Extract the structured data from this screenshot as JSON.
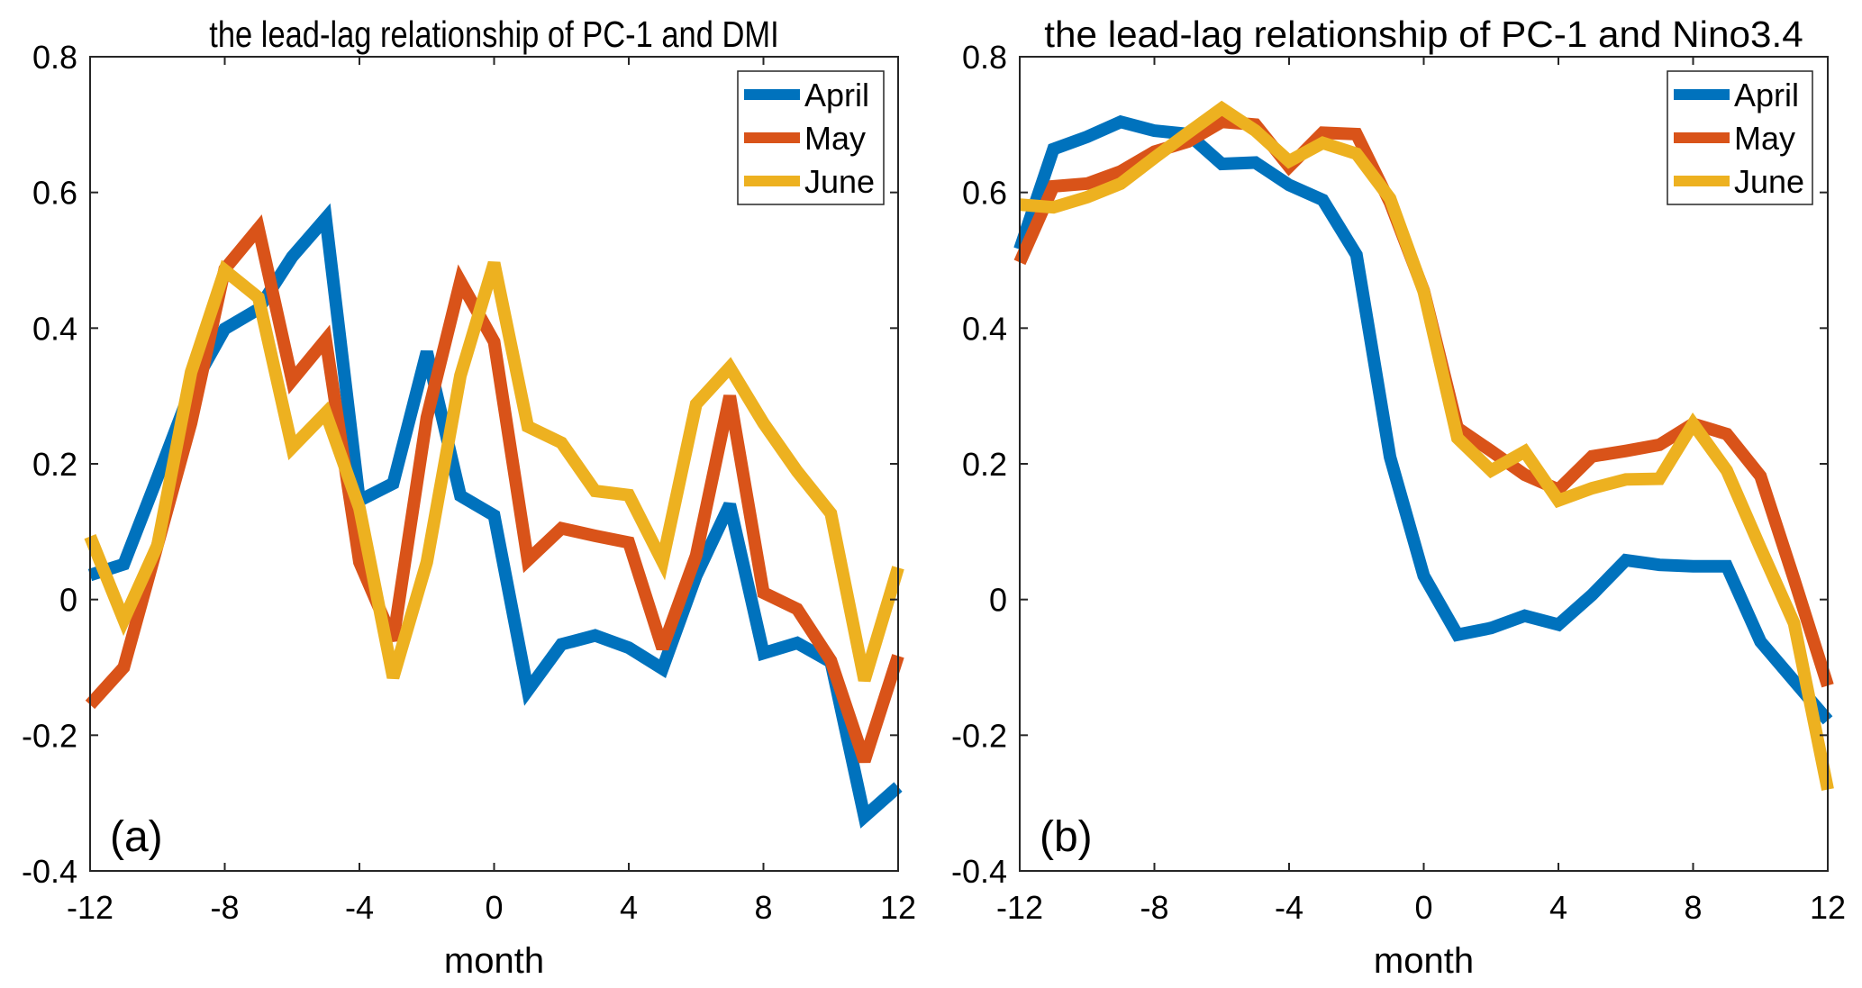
{
  "figure": {
    "panels": [
      "a",
      "b"
    ]
  },
  "colors": {
    "April": "#0072BD",
    "May": "#D95319",
    "June": "#EDB120",
    "axis": "#262626"
  },
  "chart_data": [
    {
      "type": "line",
      "panel_label": "(a)",
      "title": "the lead-lag relationship of PC-1 and DMI",
      "xlabel": "month",
      "ylabel": "",
      "xlim": [
        -12,
        12
      ],
      "ylim": [
        -0.4,
        0.8
      ],
      "xticks": [
        -12,
        -8,
        -4,
        0,
        4,
        8,
        12
      ],
      "xtick_labels": [
        "-12",
        "-8",
        "-4",
        "0",
        "4",
        "8",
        "12"
      ],
      "yticks": [
        -0.4,
        -0.2,
        0,
        0.2,
        0.4,
        0.6,
        0.8
      ],
      "ytick_labels": [
        "-0.4",
        "-0.2",
        "0",
        "0.2",
        "0.4",
        "0.6",
        "0.8"
      ],
      "grid": false,
      "legend_position": "top-right",
      "x": [
        -12,
        -11,
        -10,
        -9,
        -8,
        -7,
        -6,
        -5,
        -4,
        -3,
        -2,
        -1,
        0,
        1,
        2,
        3,
        4,
        5,
        6,
        7,
        8,
        9,
        10,
        11,
        12
      ],
      "series": [
        {
          "name": "April",
          "values": [
            0.036,
            0.052,
            0.18,
            0.31,
            0.399,
            0.428,
            0.505,
            0.562,
            0.146,
            0.171,
            0.365,
            0.153,
            0.124,
            -0.134,
            -0.066,
            -0.053,
            -0.071,
            -0.102,
            0.035,
            0.14,
            -0.079,
            -0.064,
            -0.092,
            -0.32,
            -0.276
          ]
        },
        {
          "name": "May",
          "values": [
            -0.155,
            -0.1,
            0.08,
            0.26,
            0.487,
            0.547,
            0.323,
            0.383,
            0.055,
            -0.06,
            0.268,
            0.469,
            0.38,
            0.058,
            0.105,
            0.094,
            0.084,
            -0.072,
            0.065,
            0.3,
            0.01,
            -0.014,
            -0.09,
            -0.238,
            -0.083
          ]
        },
        {
          "name": "June",
          "values": [
            0.093,
            -0.03,
            0.08,
            0.335,
            0.485,
            0.445,
            0.224,
            0.275,
            0.135,
            -0.115,
            0.055,
            0.33,
            0.496,
            0.255,
            0.231,
            0.16,
            0.154,
            0.056,
            0.288,
            0.342,
            0.26,
            0.189,
            0.127,
            -0.119,
            0.047
          ]
        }
      ]
    },
    {
      "type": "line",
      "panel_label": "(b)",
      "title": "the lead-lag relationship of PC-1 and Nino3.4",
      "xlabel": "month",
      "ylabel": "",
      "xlim": [
        -12,
        12
      ],
      "ylim": [
        -0.4,
        0.8
      ],
      "xticks": [
        -12,
        -8,
        -4,
        0,
        4,
        8,
        12
      ],
      "xtick_labels": [
        "-12",
        "-8",
        "-4",
        "0",
        "4",
        "8",
        "12"
      ],
      "yticks": [
        -0.4,
        -0.2,
        0,
        0.2,
        0.4,
        0.6,
        0.8
      ],
      "ytick_labels": [
        "-0.4",
        "-0.2",
        "0",
        "0.2",
        "0.4",
        "0.6",
        "0.8"
      ],
      "grid": false,
      "legend_position": "top-right",
      "x": [
        -12,
        -11,
        -10,
        -9,
        -8,
        -7,
        -6,
        -5,
        -4,
        -3,
        -2,
        -1,
        0,
        1,
        2,
        3,
        4,
        5,
        6,
        7,
        8,
        9,
        10,
        11,
        12
      ],
      "series": [
        {
          "name": "April",
          "values": [
            0.516,
            0.664,
            0.682,
            0.704,
            0.691,
            0.686,
            0.642,
            0.644,
            0.611,
            0.589,
            0.508,
            0.21,
            0.035,
            -0.052,
            -0.042,
            -0.024,
            -0.037,
            0.007,
            0.058,
            0.051,
            0.049,
            0.049,
            -0.062,
            -0.12,
            -0.178
          ]
        },
        {
          "name": "May",
          "values": [
            0.497,
            0.609,
            0.613,
            0.631,
            0.66,
            0.675,
            0.704,
            0.7,
            0.638,
            0.688,
            0.686,
            0.585,
            0.455,
            0.253,
            0.219,
            0.184,
            0.162,
            0.211,
            0.219,
            0.228,
            0.259,
            0.244,
            0.182,
            0.03,
            -0.127
          ]
        },
        {
          "name": "June",
          "values": [
            0.582,
            0.578,
            0.593,
            0.613,
            0.651,
            0.688,
            0.724,
            0.691,
            0.646,
            0.673,
            0.657,
            0.591,
            0.454,
            0.238,
            0.19,
            0.218,
            0.146,
            0.164,
            0.177,
            0.178,
            0.259,
            0.19,
            0.076,
            -0.035,
            -0.28
          ]
        }
      ]
    }
  ]
}
